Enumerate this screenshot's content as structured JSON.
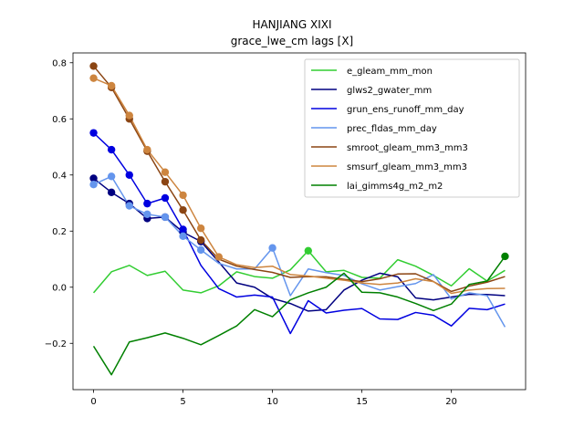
{
  "chart_data": {
    "type": "line",
    "title": "HANJIANG XIXI",
    "subtitle": "grace_lwe_cm lags [X]",
    "xlabel": "",
    "ylabel": "",
    "xlim": [
      -1.15,
      24.15
    ],
    "ylim": [
      -0.365,
      0.835
    ],
    "xticks": [
      0,
      5,
      10,
      15,
      20
    ],
    "yticks": [
      -0.2,
      0.0,
      0.2,
      0.4,
      0.6,
      0.8
    ],
    "ytick_labels": [
      "−0.2",
      "0.0",
      "0.2",
      "0.4",
      "0.6",
      "0.8"
    ],
    "legend_position": "top-right",
    "x": [
      0,
      1,
      2,
      3,
      4,
      5,
      6,
      7,
      8,
      9,
      10,
      11,
      12,
      13,
      14,
      15,
      16,
      17,
      18,
      19,
      20,
      21,
      22,
      23
    ],
    "series": [
      {
        "name": "e_gleam_mm_mon",
        "color": "#32cd32",
        "values": [
          -0.02,
          0.055,
          0.078,
          0.042,
          0.057,
          -0.01,
          -0.02,
          0.005,
          0.055,
          0.038,
          0.032,
          0.062,
          0.13,
          0.055,
          0.06,
          0.035,
          0.032,
          0.098,
          0.075,
          0.042,
          0.005,
          0.066,
          0.022,
          0.06
        ],
        "markers": [
          12
        ]
      },
      {
        "name": "glws2_gwater_mm",
        "color": "#000080",
        "values": [
          0.388,
          0.338,
          0.298,
          0.245,
          0.25,
          0.196,
          0.163,
          0.09,
          0.015,
          0.0,
          -0.04,
          -0.058,
          -0.085,
          -0.08,
          -0.01,
          0.025,
          0.05,
          0.037,
          -0.038,
          -0.045,
          -0.035,
          -0.025,
          -0.026,
          -0.03
        ],
        "markers": [
          0,
          1,
          2,
          3,
          4,
          5,
          6
        ]
      },
      {
        "name": "grun_ens_runoff_mm_day",
        "color": "#0000e0",
        "values": [
          0.55,
          0.49,
          0.4,
          0.298,
          0.318,
          0.206,
          0.078,
          -0.005,
          -0.035,
          -0.028,
          -0.035,
          -0.165,
          -0.048,
          -0.092,
          -0.082,
          -0.076,
          -0.113,
          -0.115,
          -0.09,
          -0.1,
          -0.138,
          -0.075,
          -0.08,
          -0.06
        ],
        "markers": [
          0,
          1,
          2,
          3,
          4,
          5
        ]
      },
      {
        "name": "prec_fldas_mm_day",
        "color": "#6495ed",
        "values": [
          0.366,
          0.395,
          0.29,
          0.26,
          0.25,
          0.182,
          0.133,
          0.085,
          0.065,
          0.065,
          0.14,
          -0.03,
          0.065,
          0.052,
          0.042,
          0.012,
          -0.01,
          0.002,
          0.013,
          0.045,
          -0.042,
          -0.02,
          -0.03,
          -0.142
        ],
        "markers": [
          0,
          1,
          2,
          3,
          4,
          5,
          6,
          10
        ]
      },
      {
        "name": "smroot_gleam_mm3_mm3",
        "color": "#8b4513",
        "values": [
          0.788,
          0.712,
          0.6,
          0.485,
          0.376,
          0.275,
          0.168,
          0.1,
          0.075,
          0.063,
          0.053,
          0.035,
          0.038,
          0.037,
          0.028,
          0.02,
          0.03,
          0.047,
          0.048,
          0.02,
          -0.015,
          0.004,
          0.018,
          0.038
        ],
        "markers": [
          0,
          1,
          2,
          3,
          4,
          5,
          6
        ]
      },
      {
        "name": "smsurf_gleam_mm3_mm3",
        "color": "#cd853f",
        "values": [
          0.745,
          0.718,
          0.612,
          0.49,
          0.41,
          0.328,
          0.21,
          0.108,
          0.08,
          0.07,
          0.075,
          0.045,
          0.04,
          0.032,
          0.025,
          0.015,
          0.01,
          0.015,
          0.03,
          0.02,
          -0.022,
          -0.01,
          -0.005,
          -0.004
        ],
        "markers": [
          0,
          1,
          2,
          3,
          4,
          5,
          6,
          7
        ]
      },
      {
        "name": "lai_gimms4g_m2_m2",
        "color": "#008000",
        "values": [
          -0.21,
          -0.312,
          -0.195,
          -0.18,
          -0.163,
          -0.182,
          -0.205,
          -0.172,
          -0.138,
          -0.08,
          -0.105,
          -0.045,
          -0.02,
          0.0,
          0.05,
          -0.018,
          -0.02,
          -0.035,
          -0.058,
          -0.083,
          -0.06,
          0.01,
          0.022,
          0.11
        ],
        "markers": [
          23
        ]
      }
    ]
  }
}
